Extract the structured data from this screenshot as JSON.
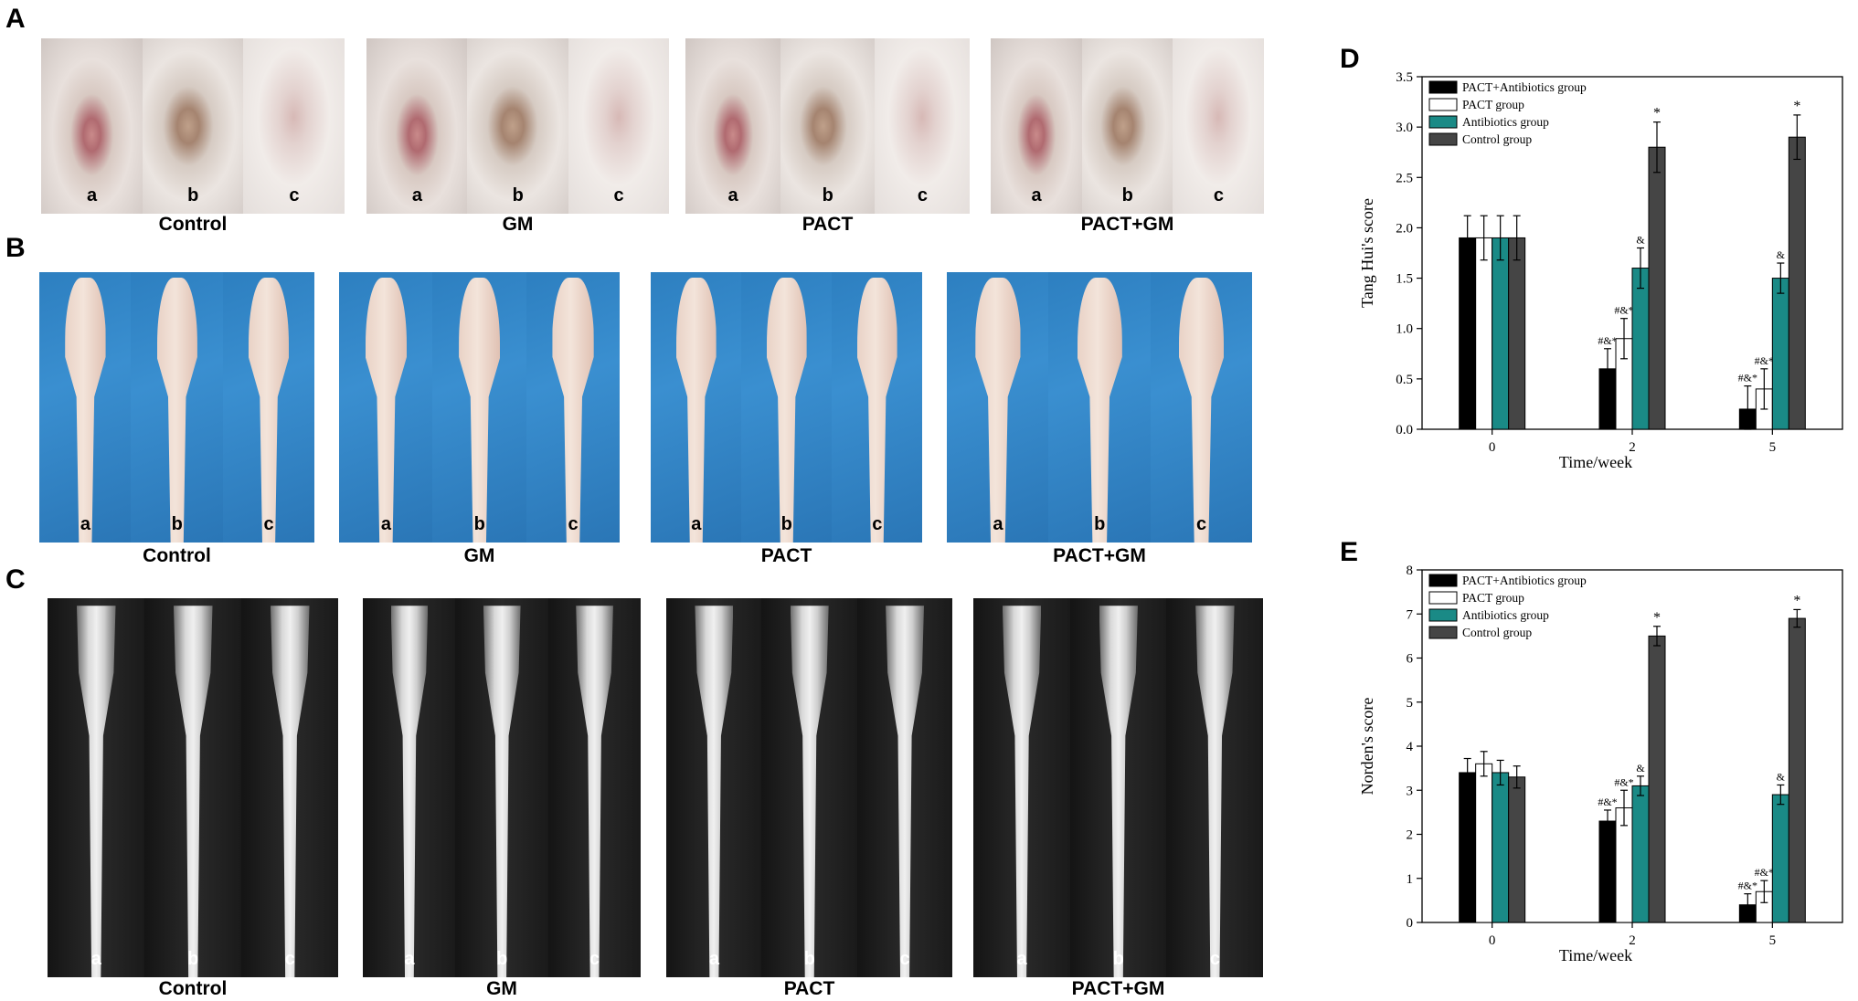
{
  "panels": {
    "A": {
      "letter": "A",
      "groups": [
        {
          "caption": "Control",
          "tiles": [
            "a",
            "b",
            "c"
          ]
        },
        {
          "caption": "GM",
          "tiles": [
            "a",
            "b",
            "c"
          ]
        },
        {
          "caption": "PACT",
          "tiles": [
            "a",
            "b",
            "c"
          ]
        },
        {
          "caption": "PACT+GM",
          "tiles": [
            "a",
            "b",
            "c"
          ]
        }
      ]
    },
    "B": {
      "letter": "B",
      "groups": [
        {
          "caption": "Control",
          "tiles": [
            "a",
            "b",
            "c"
          ]
        },
        {
          "caption": "GM",
          "tiles": [
            "a",
            "b",
            "c"
          ]
        },
        {
          "caption": "PACT",
          "tiles": [
            "a",
            "b",
            "c"
          ]
        },
        {
          "caption": "PACT+GM",
          "tiles": [
            "a",
            "b",
            "c"
          ]
        }
      ]
    },
    "C": {
      "letter": "C",
      "groups": [
        {
          "caption": "Control",
          "tiles": [
            "a",
            "b",
            "c"
          ]
        },
        {
          "caption": "GM",
          "tiles": [
            "a",
            "b",
            "c"
          ]
        },
        {
          "caption": "PACT",
          "tiles": [
            "a",
            "b",
            "c"
          ]
        },
        {
          "caption": "PACT+GM",
          "tiles": [
            "a",
            "b",
            "c"
          ]
        }
      ]
    },
    "D": {
      "letter": "D"
    },
    "E": {
      "letter": "E"
    }
  },
  "colors": {
    "pact_antibiotics": "#000000",
    "pact": "#ffffff",
    "antibiotics": "#1a8a86",
    "control": "#454545"
  },
  "chart_data": [
    {
      "type": "bar",
      "panel": "D",
      "categories": [
        "0",
        "2",
        "5"
      ],
      "xlabel": "Time/week",
      "ylabel": "Tang Hui's score",
      "ylim": [
        0,
        3.5
      ],
      "yticks": [
        "0.0",
        "0.5",
        "1.0",
        "1.5",
        "2.0",
        "2.5",
        "3.0",
        "3.5"
      ],
      "legend_position": "top-left",
      "series": [
        {
          "name": "PACT+Antibiotics group",
          "values": [
            1.9,
            0.6,
            0.2
          ],
          "errors": [
            0.22,
            0.2,
            0.23
          ],
          "annotations": [
            "",
            "#&*",
            "#&*"
          ]
        },
        {
          "name": "PACT group",
          "values": [
            1.9,
            0.9,
            0.4
          ],
          "errors": [
            0.22,
            0.2,
            0.2
          ],
          "annotations": [
            "",
            "#&*",
            "#&*"
          ]
        },
        {
          "name": "Antibiotics group",
          "values": [
            1.9,
            1.6,
            1.5
          ],
          "errors": [
            0.22,
            0.2,
            0.15
          ],
          "annotations": [
            "",
            "&",
            "&"
          ]
        },
        {
          "name": "Control group",
          "values": [
            1.9,
            2.8,
            2.9
          ],
          "errors": [
            0.22,
            0.25,
            0.22
          ],
          "annotations": [
            "",
            "*",
            "*"
          ]
        }
      ]
    },
    {
      "type": "bar",
      "panel": "E",
      "categories": [
        "0",
        "2",
        "5"
      ],
      "xlabel": "Time/week",
      "ylabel": "Norden's score",
      "ylim": [
        0,
        8
      ],
      "yticks": [
        "0",
        "1",
        "2",
        "3",
        "4",
        "5",
        "6",
        "7",
        "8"
      ],
      "legend_position": "top-left",
      "series": [
        {
          "name": "PACT+Antibiotics group",
          "values": [
            3.4,
            2.3,
            0.4
          ],
          "errors": [
            0.32,
            0.25,
            0.25
          ],
          "annotations": [
            "",
            "#&*",
            "#&*"
          ]
        },
        {
          "name": "PACT group",
          "values": [
            3.6,
            2.6,
            0.7
          ],
          "errors": [
            0.28,
            0.4,
            0.25
          ],
          "annotations": [
            "",
            "#&*",
            "#&*"
          ]
        },
        {
          "name": "Antibiotics group",
          "values": [
            3.4,
            3.1,
            2.9
          ],
          "errors": [
            0.28,
            0.22,
            0.22
          ],
          "annotations": [
            "",
            "&",
            "&"
          ]
        },
        {
          "name": "Control group",
          "values": [
            3.3,
            6.5,
            6.9
          ],
          "errors": [
            0.25,
            0.22,
            0.2
          ],
          "annotations": [
            "",
            "*",
            "*"
          ]
        }
      ]
    }
  ]
}
